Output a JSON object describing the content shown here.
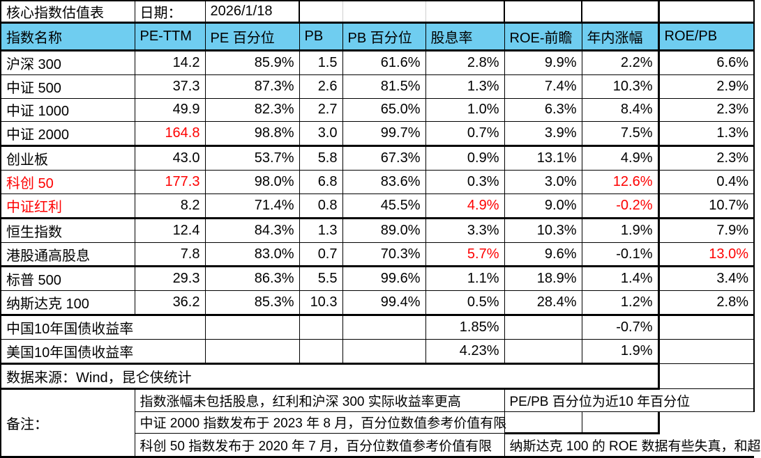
{
  "colors": {
    "header_bg": "#6fcdf0",
    "alert_red": "#fe0000",
    "grid_black": "#000000",
    "grid_light_gray": "#cfcfcf"
  },
  "title_row": {
    "title": "核心指数估值表",
    "date_label": "日期：",
    "date_value": "2026/1/18"
  },
  "headers": [
    "指数名称",
    "PE-TTM",
    "PE 百分位",
    "PB",
    "PB 百分位",
    "股息率",
    "ROE-前瞻",
    "年内涨幅",
    "ROE/PB"
  ],
  "index_rows": [
    {
      "name": "沪深 300",
      "name_red": false,
      "values": [
        "14.2",
        "85.9%",
        "1.5",
        "61.6%",
        "2.8%",
        "9.9%",
        "2.2%",
        "6.6%"
      ],
      "red_values": [],
      "group_end": false
    },
    {
      "name": "中证 500",
      "name_red": false,
      "values": [
        "37.3",
        "87.3%",
        "2.6",
        "81.5%",
        "1.3%",
        "7.4%",
        "10.3%",
        "2.9%"
      ],
      "red_values": [],
      "group_end": false
    },
    {
      "name": "中证 1000",
      "name_red": false,
      "values": [
        "49.9",
        "82.3%",
        "2.7",
        "65.0%",
        "1.0%",
        "6.3%",
        "8.4%",
        "2.3%"
      ],
      "red_values": [],
      "group_end": false
    },
    {
      "name": "中证 2000",
      "name_red": false,
      "values": [
        "164.8",
        "98.8%",
        "3.0",
        "99.7%",
        "0.7%",
        "3.9%",
        "7.5%",
        "1.3%"
      ],
      "red_values": [
        0
      ],
      "group_end": true
    },
    {
      "name": "创业板",
      "name_red": false,
      "values": [
        "43.0",
        "53.7%",
        "5.8",
        "67.3%",
        "0.9%",
        "13.1%",
        "4.9%",
        "2.3%"
      ],
      "red_values": [],
      "group_end": false
    },
    {
      "name": "科创 50",
      "name_red": true,
      "values": [
        "177.3",
        "98.0%",
        "6.8",
        "83.6%",
        "0.3%",
        "3.0%",
        "12.6%",
        "0.4%"
      ],
      "red_values": [
        0,
        6
      ],
      "group_end": false
    },
    {
      "name": "中证红利",
      "name_red": true,
      "values": [
        "8.2",
        "71.4%",
        "0.8",
        "45.5%",
        "4.9%",
        "9.0%",
        "-0.2%",
        "10.7%"
      ],
      "red_values": [
        4,
        6
      ],
      "group_end": true
    },
    {
      "name": "恒生指数",
      "name_red": false,
      "values": [
        "12.4",
        "84.3%",
        "1.3",
        "89.0%",
        "3.3%",
        "10.3%",
        "1.9%",
        "7.9%"
      ],
      "red_values": [],
      "group_end": false
    },
    {
      "name": "港股通高股息",
      "name_red": false,
      "values": [
        "7.8",
        "83.0%",
        "0.7",
        "70.3%",
        "5.7%",
        "9.6%",
        "-0.1%",
        "13.0%"
      ],
      "red_values": [
        4,
        7
      ],
      "group_end": true
    },
    {
      "name": "标普 500",
      "name_red": false,
      "values": [
        "29.3",
        "86.3%",
        "5.5",
        "99.6%",
        "1.1%",
        "18.9%",
        "1.4%",
        "3.4%"
      ],
      "red_values": [],
      "group_end": false
    },
    {
      "name": "纳斯达克 100",
      "name_red": false,
      "values": [
        "36.2",
        "85.3%",
        "10.3",
        "99.4%",
        "0.5%",
        "28.4%",
        "1.2%",
        "2.8%"
      ],
      "red_values": [],
      "group_end": true
    }
  ],
  "bond_rows": [
    {
      "name": "中国10年国债收益率",
      "dividend_yield": "1.85%",
      "ytd_change": "-0.7%"
    },
    {
      "name": "美国10年国债收益率",
      "dividend_yield": "4.23%",
      "ytd_change": "1.9%"
    }
  ],
  "source_row": {
    "text": "数据来源：Wind，昆仑侠统计"
  },
  "notes": {
    "label": "备注：",
    "left_notes": [
      "指数涨幅未包括股息，红利和沪深 300 实际收益率更高",
      "中证 2000 指数发布于 2023 年 8 月，百分位数值参考价值有限",
      "科创 50 指数发布于 2020 年 7 月，百分位数值参考价值有限"
    ],
    "right_notes": [
      "PE/PB 百分位为近10 年百分位",
      "",
      "纳斯达克 100 的 ROE 数据有些失真，和超"
    ]
  }
}
